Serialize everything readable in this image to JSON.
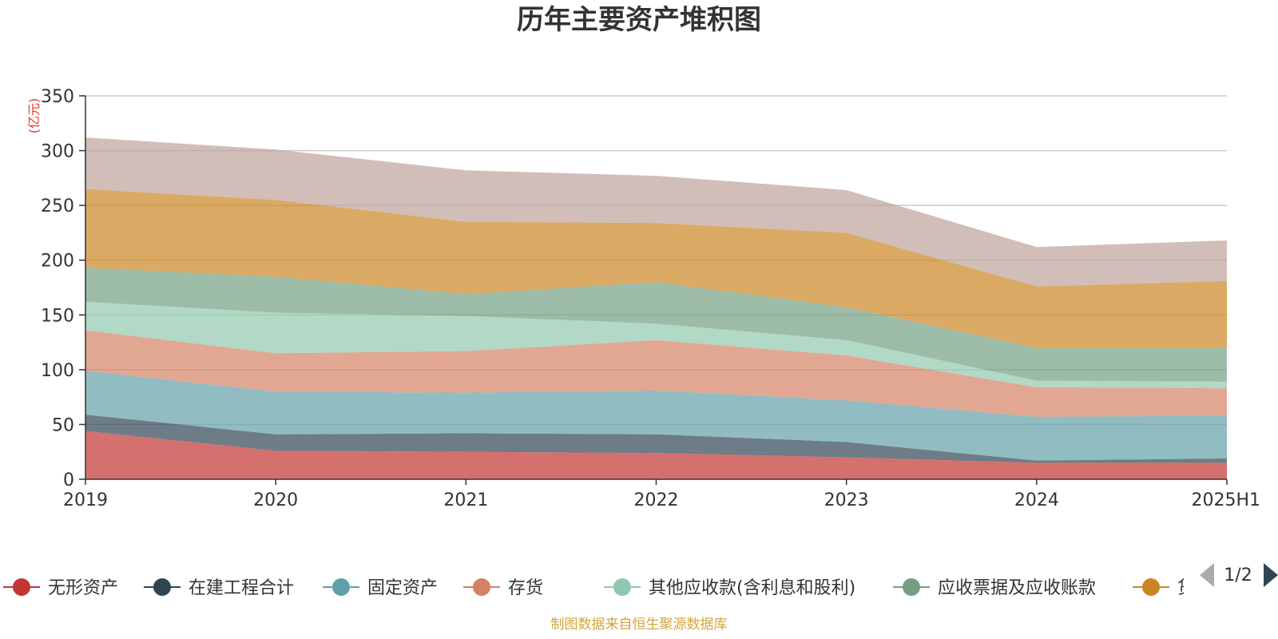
{
  "chart_data": {
    "type": "area",
    "stacked": true,
    "title": "历年主要资产堆积图",
    "unit": "(亿元)",
    "ylim": [
      0,
      350
    ],
    "yticks": [
      0,
      50,
      100,
      150,
      200,
      250,
      300,
      350
    ],
    "grid": true,
    "categories": [
      "2019",
      "2020",
      "2021",
      "2022",
      "2023",
      "2024",
      "2025H1"
    ],
    "series": [
      {
        "name": "无形资产",
        "color": "#c23531",
        "values": [
          44,
          26,
          25,
          24,
          20,
          15,
          15
        ]
      },
      {
        "name": "在建工程合计",
        "color": "#2f4554",
        "values": [
          15,
          15,
          17,
          17,
          14,
          2,
          4
        ]
      },
      {
        "name": "固定资产",
        "color": "#61a0a8",
        "values": [
          40,
          39,
          37,
          40,
          38,
          40,
          39
        ]
      },
      {
        "name": "存货",
        "color": "#d48265",
        "values": [
          37,
          35,
          38,
          46,
          41,
          27,
          25
        ]
      },
      {
        "name": "其他应收款(含利息和股利)",
        "color": "#91c7ae",
        "values": [
          26,
          37,
          32,
          15,
          14,
          6,
          6
        ]
      },
      {
        "name": "应收票据及应收账款",
        "color": "#749f83",
        "values": [
          31,
          33,
          20,
          38,
          30,
          30,
          31
        ]
      },
      {
        "name": "货币资金",
        "color": "#ca8622",
        "values": [
          72,
          70,
          66,
          54,
          68,
          56,
          61
        ]
      },
      {
        "name": "",
        "color": "#bda29a",
        "values": [
          47,
          46,
          47,
          43,
          39,
          36,
          37
        ]
      }
    ],
    "legend": {
      "placement": "bottom",
      "visible_labels": [
        "无形资产",
        "在建工程合计",
        "固定资产",
        "存货",
        "其他应收款(含利息和股利)",
        "应收票据及应收账款",
        "货币资金"
      ],
      "pager": "1/2"
    }
  },
  "footer": "制图数据来自恒生聚源数据库"
}
